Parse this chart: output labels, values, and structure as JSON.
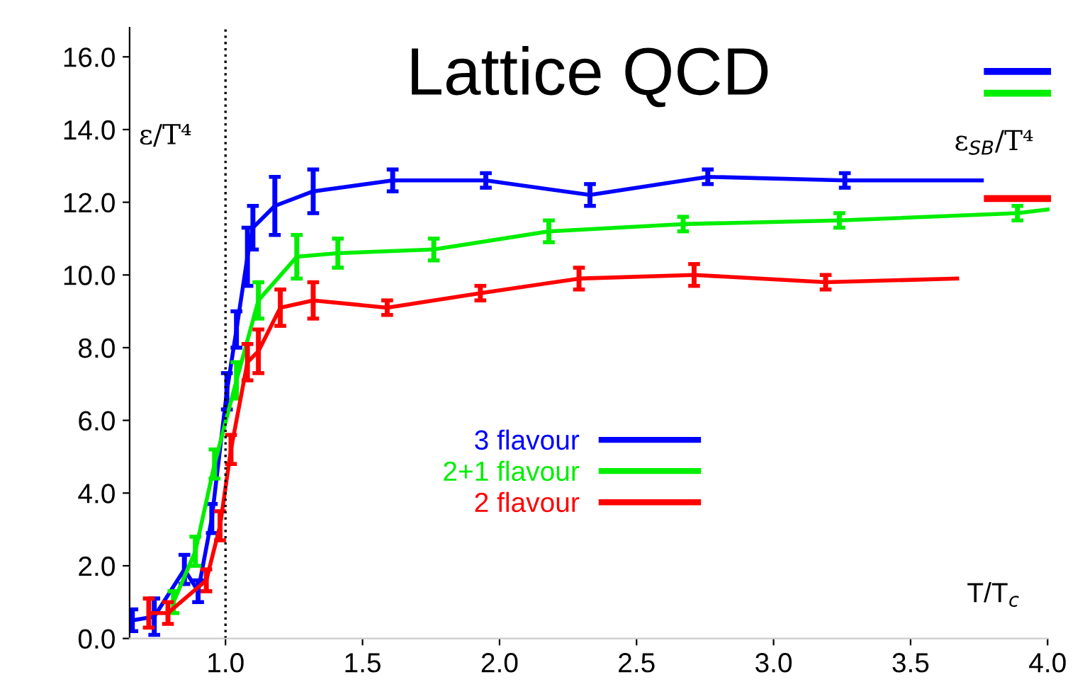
{
  "chart_data": {
    "type": "line",
    "title": "Lattice QCD",
    "ylabel": "ε/T⁴",
    "xlabel": "T/T$_{c}$",
    "annotations": [
      "ε$_{SB}$/T⁴"
    ],
    "xlim": [
      0.65,
      4.0
    ],
    "ylim": [
      0,
      16.8
    ],
    "xticks": [
      {
        "value": 1,
        "label": "1.0"
      },
      {
        "value": 1.5,
        "label": "1.5"
      },
      {
        "value": 2,
        "label": "2.0"
      },
      {
        "value": 2.5,
        "label": "2.5"
      },
      {
        "value": 3,
        "label": "3.0"
      },
      {
        "value": 3.5,
        "label": "3.5"
      },
      {
        "value": 4,
        "label": "4.0"
      }
    ],
    "yticks": [
      {
        "value": 0,
        "label": "0.0"
      },
      {
        "value": 2,
        "label": "2.0"
      },
      {
        "value": 4,
        "label": "4.0"
      },
      {
        "value": 6,
        "label": "6.0"
      },
      {
        "value": 8,
        "label": "8.0"
      },
      {
        "value": 10,
        "label": "10.0"
      },
      {
        "value": 12,
        "label": "12.0"
      },
      {
        "value": 14,
        "label": "14.0"
      },
      {
        "value": 16,
        "label": "16.0"
      }
    ],
    "grid": false,
    "legend": "center",
    "marker": "none",
    "line_style": "solid",
    "ref_lines": [
      {
        "axis": "x",
        "value": 1.0,
        "color": "#000000",
        "line_style": "dotted"
      }
    ],
    "series": [
      {
        "color": "#0000ff",
        "x": [
          3.78,
          4.0
        ],
        "values": [
          15.6,
          15.6
        ]
      },
      {
        "color": "#00ee00",
        "x": [
          3.78,
          4.0
        ],
        "values": [
          15.0,
          15.0
        ]
      },
      {
        "color": "#ff0000",
        "x": [
          3.78,
          4.0
        ],
        "values": [
          12.1,
          12.1
        ]
      },
      {
        "name": "3 flavour",
        "color": "#0000ff",
        "x": [
          0.66,
          0.74,
          0.85,
          0.9,
          0.95,
          1.005,
          1.04,
          1.08,
          1.1,
          1.18,
          1.32,
          1.61,
          1.95,
          2.33,
          2.76,
          3.26,
          3.76
        ],
        "values": [
          0.5,
          0.6,
          1.9,
          1.3,
          3.3,
          6.8,
          8.5,
          10.5,
          11.3,
          11.9,
          12.3,
          12.6,
          12.6,
          12.2,
          12.7,
          12.6,
          12.6
        ],
        "errors": [
          0.3,
          0.5,
          0.4,
          0.3,
          0.4,
          0.5,
          0.5,
          0.8,
          0.6,
          0.8,
          0.6,
          0.3,
          0.2,
          0.3,
          0.2,
          0.2,
          null
        ]
      },
      {
        "name": "2+1 flavour",
        "color": "#00ee00",
        "x": [
          0.81,
          0.89,
          0.96,
          1.04,
          1.12,
          1.26,
          1.41,
          1.76,
          2.18,
          2.67,
          3.24,
          3.89,
          4.0
        ],
        "values": [
          1.0,
          2.4,
          4.8,
          7.1,
          9.3,
          10.5,
          10.6,
          10.7,
          11.2,
          11.4,
          11.5,
          11.7,
          11.8
        ],
        "errors": [
          0.3,
          0.4,
          0.4,
          0.5,
          0.5,
          0.6,
          0.4,
          0.3,
          0.3,
          0.2,
          0.2,
          0.2,
          null
        ]
      },
      {
        "name": "2 flavour",
        "color": "#ff0000",
        "x": [
          0.72,
          0.79,
          0.93,
          0.98,
          1.02,
          1.08,
          1.12,
          1.2,
          1.32,
          1.59,
          1.93,
          2.29,
          2.71,
          3.19,
          3.67
        ],
        "values": [
          0.7,
          0.7,
          1.6,
          3.1,
          5.2,
          7.6,
          7.9,
          9.1,
          9.3,
          9.1,
          9.5,
          9.9,
          10.0,
          9.8,
          9.9
        ],
        "errors": [
          0.4,
          0.3,
          0.3,
          0.4,
          0.4,
          0.5,
          0.6,
          0.5,
          0.5,
          0.2,
          0.2,
          0.3,
          0.3,
          0.2,
          null
        ]
      }
    ]
  }
}
